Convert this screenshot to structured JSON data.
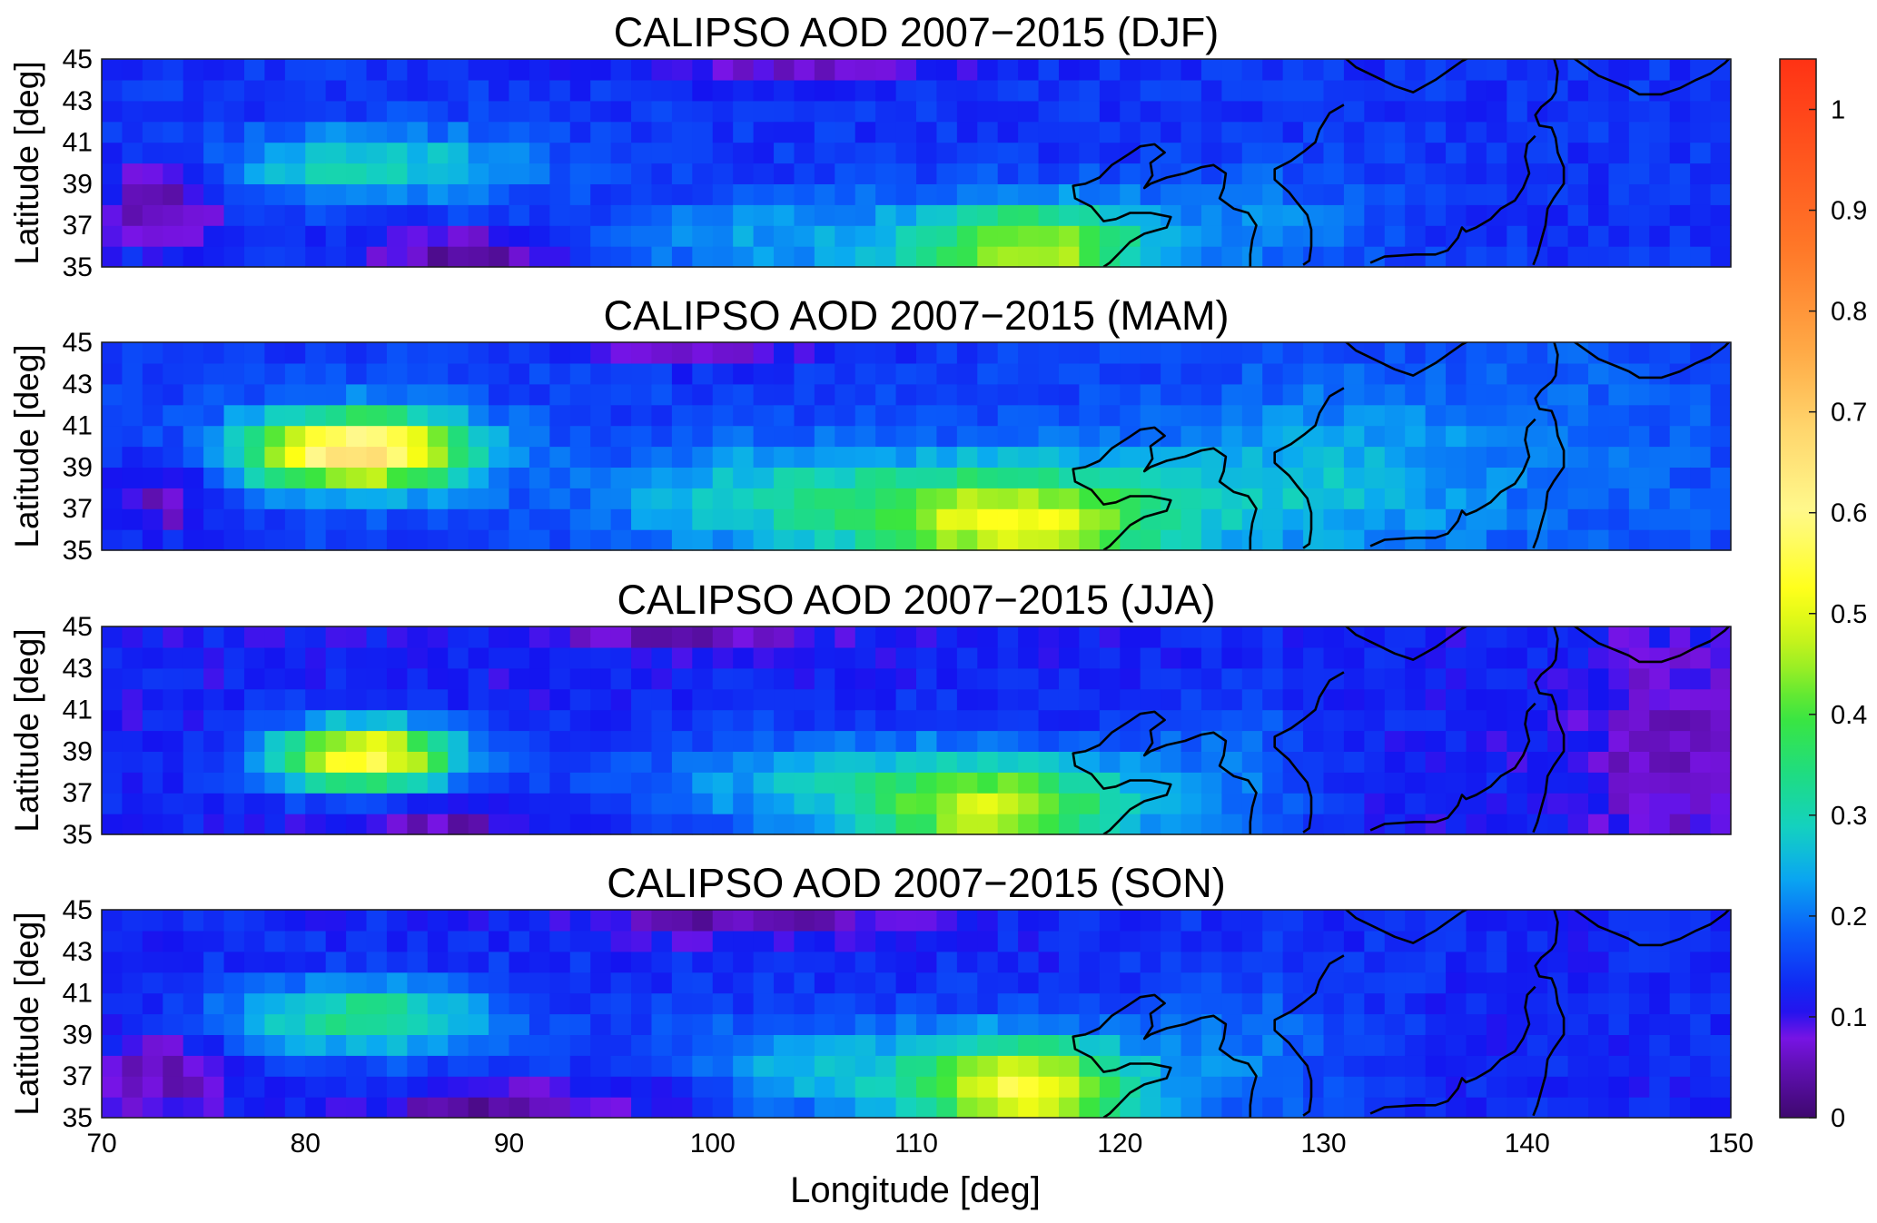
{
  "chart_data": [
    {
      "type": "heatmap",
      "title": "CALIPSO AOD 2007−2015 (DJF)",
      "ylabel": "Latitude [deg]",
      "xlabel": "",
      "xlim": [
        70,
        150
      ],
      "ylim": [
        35,
        45
      ],
      "yticks": [
        "45",
        "43",
        "41",
        "39",
        "37",
        "35"
      ],
      "grid": false,
      "blobs": [
        {
          "lon": 116,
          "lat": 35.8,
          "sx": 5.5,
          "sy": 2.3,
          "amp": 0.3
        },
        {
          "lon": 105,
          "lat": 36.3,
          "sx": 10,
          "sy": 2.2,
          "amp": 0.1
        },
        {
          "lon": 84,
          "lat": 40,
          "sx": 7,
          "sy": 1.7,
          "amp": 0.15
        },
        {
          "lon": 79,
          "lat": 39.5,
          "sx": 3,
          "sy": 1.2,
          "amp": 0.05
        },
        {
          "lon": 127,
          "lat": 37,
          "sx": 6,
          "sy": 3,
          "amp": 0.07
        }
      ],
      "background": 0.14,
      "low_zones": [
        {
          "lon": 73,
          "lat": 38,
          "sx": 3,
          "sy": 2,
          "amp": -0.1
        },
        {
          "lon": 88,
          "lat": 35.5,
          "sx": 5,
          "sy": 1.3,
          "amp": -0.12
        },
        {
          "lon": 104,
          "lat": 44.7,
          "sx": 8,
          "sy": 0.9,
          "amp": -0.08
        }
      ]
    },
    {
      "type": "heatmap",
      "title": "CALIPSO AOD 2007−2015 (MAM)",
      "ylabel": "Latitude [deg]",
      "xlabel": "",
      "xlim": [
        70,
        150
      ],
      "ylim": [
        35,
        45
      ],
      "yticks": [
        "45",
        "43",
        "41",
        "39",
        "37",
        "35"
      ],
      "grid": false,
      "blobs": [
        {
          "lon": 82.5,
          "lat": 39.8,
          "sx": 5.5,
          "sy": 1.8,
          "amp": 0.52
        },
        {
          "lon": 115,
          "lat": 36.3,
          "sx": 7,
          "sy": 2.5,
          "amp": 0.34
        },
        {
          "lon": 104,
          "lat": 37.5,
          "sx": 9,
          "sy": 2.5,
          "amp": 0.15
        },
        {
          "lon": 128,
          "lat": 38,
          "sx": 9,
          "sy": 4,
          "amp": 0.1
        },
        {
          "lon": 140,
          "lat": 40,
          "sx": 12,
          "sy": 6,
          "amp": 0.04
        }
      ],
      "background": 0.15,
      "low_zones": [
        {
          "lon": 73,
          "lat": 37.5,
          "sx": 3,
          "sy": 2,
          "amp": -0.09
        },
        {
          "lon": 100,
          "lat": 44.6,
          "sx": 7,
          "sy": 0.9,
          "amp": -0.07
        }
      ]
    },
    {
      "type": "heatmap",
      "title": "CALIPSO AOD 2007−2015 (JJA)",
      "ylabel": "Latitude [deg]",
      "xlabel": "",
      "xlim": [
        70,
        150
      ],
      "ylim": [
        35,
        45
      ],
      "yticks": [
        "45",
        "43",
        "41",
        "39",
        "37",
        "35"
      ],
      "grid": false,
      "blobs": [
        {
          "lon": 83,
          "lat": 38.8,
          "sx": 4.5,
          "sy": 1.6,
          "amp": 0.45
        },
        {
          "lon": 114,
          "lat": 36.2,
          "sx": 6.5,
          "sy": 2.5,
          "amp": 0.34
        },
        {
          "lon": 104,
          "lat": 37.5,
          "sx": 9,
          "sy": 2.5,
          "amp": 0.12
        },
        {
          "lon": 125,
          "lat": 38,
          "sx": 5,
          "sy": 4,
          "amp": 0.08
        }
      ],
      "background": 0.12,
      "low_zones": [
        {
          "lon": 98,
          "lat": 44.6,
          "sx": 6,
          "sy": 0.9,
          "amp": -0.07
        },
        {
          "lon": 147,
          "lat": 39,
          "sx": 4,
          "sy": 5,
          "amp": -0.07
        },
        {
          "lon": 87,
          "lat": 35.5,
          "sx": 4,
          "sy": 1,
          "amp": -0.07
        }
      ]
    },
    {
      "type": "heatmap",
      "title": "CALIPSO AOD 2007−2015 (SON)",
      "ylabel": "Latitude [deg]",
      "xlabel": "Longitude [deg]",
      "xlim": [
        70,
        150
      ],
      "ylim": [
        35,
        45
      ],
      "yticks": [
        "45",
        "43",
        "41",
        "39",
        "37",
        "35"
      ],
      "xticks": [
        "70",
        "80",
        "90",
        "100",
        "110",
        "120",
        "130",
        "140",
        "150"
      ],
      "grid": false,
      "blobs": [
        {
          "lon": 83,
          "lat": 39.8,
          "sx": 6.5,
          "sy": 1.7,
          "amp": 0.22
        },
        {
          "lon": 115.5,
          "lat": 36.3,
          "sx": 5.5,
          "sy": 2.5,
          "amp": 0.4
        },
        {
          "lon": 105,
          "lat": 37.5,
          "sx": 8,
          "sy": 2.5,
          "amp": 0.12
        },
        {
          "lon": 126,
          "lat": 38,
          "sx": 5,
          "sy": 4,
          "amp": 0.07
        }
      ],
      "background": 0.13,
      "low_zones": [
        {
          "lon": 73,
          "lat": 37,
          "sx": 3,
          "sy": 2,
          "amp": -0.08
        },
        {
          "lon": 89,
          "lat": 35.5,
          "sx": 5,
          "sy": 1.2,
          "amp": -0.1
        },
        {
          "lon": 102,
          "lat": 44.6,
          "sx": 8,
          "sy": 1,
          "amp": -0.09
        },
        {
          "lon": 98,
          "lat": 36,
          "sx": 3,
          "sy": 1.2,
          "amp": -0.06
        }
      ]
    }
  ],
  "colorbar": {
    "min": 0,
    "max": 1.05,
    "ticks": [
      "0",
      "0.1",
      "0.2",
      "0.3",
      "0.4",
      "0.5",
      "0.6",
      "0.7",
      "0.8",
      "0.9",
      "1"
    ],
    "colormap": "parula-jet"
  },
  "colors": {
    "background": "#ffffff",
    "coastline": "#000000",
    "axes": "#1a1a1a"
  }
}
